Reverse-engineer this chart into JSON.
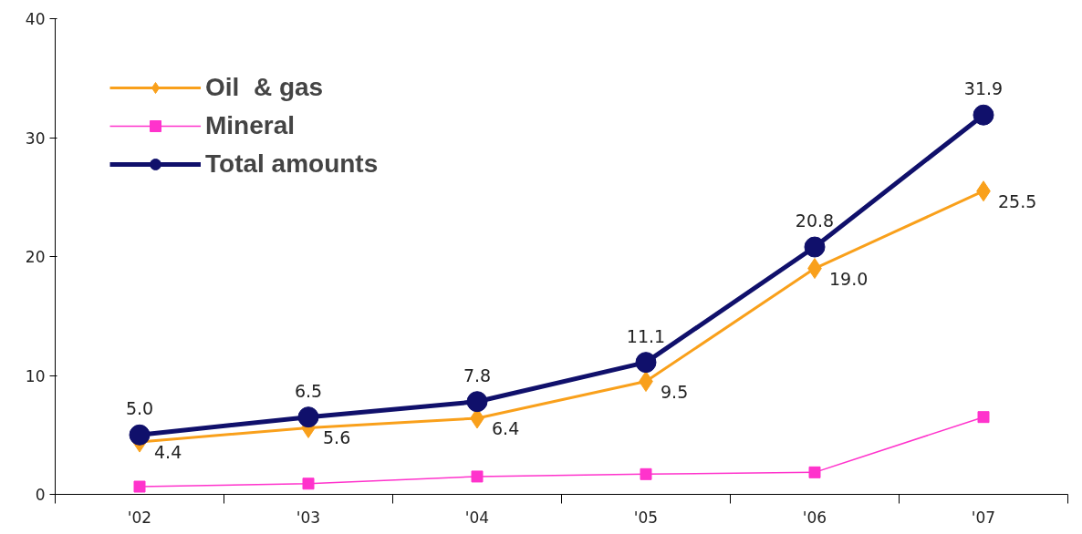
{
  "chart_data": {
    "type": "line",
    "categories": [
      "'02",
      "'03",
      "'04",
      "'05",
      "'06",
      "'07"
    ],
    "series": [
      {
        "name": "Oil  & gas",
        "color": "#f9a01b",
        "marker": "diamond",
        "values": [
          4.4,
          5.6,
          6.4,
          9.5,
          19.0,
          25.5
        ],
        "value_labels": [
          "4.4",
          "5.6",
          "6.4",
          "9.5",
          "19.0",
          "25.5"
        ]
      },
      {
        "name": "Mineral",
        "color": "#ff33cc",
        "marker": "square",
        "values": [
          0.65,
          0.9,
          1.5,
          1.7,
          1.85,
          6.5
        ]
      },
      {
        "name": "Total amounts",
        "color": "#10106b",
        "marker": "circle",
        "values": [
          5.0,
          6.5,
          7.8,
          11.1,
          20.8,
          31.9
        ],
        "value_labels": [
          "5.0",
          "6.5",
          "7.8",
          "11.1",
          "20.8",
          "31.9"
        ]
      }
    ],
    "ylim": [
      0,
      40
    ],
    "yticks": [
      0,
      10,
      20,
      30,
      40
    ],
    "grid": false,
    "legend": "top left"
  }
}
